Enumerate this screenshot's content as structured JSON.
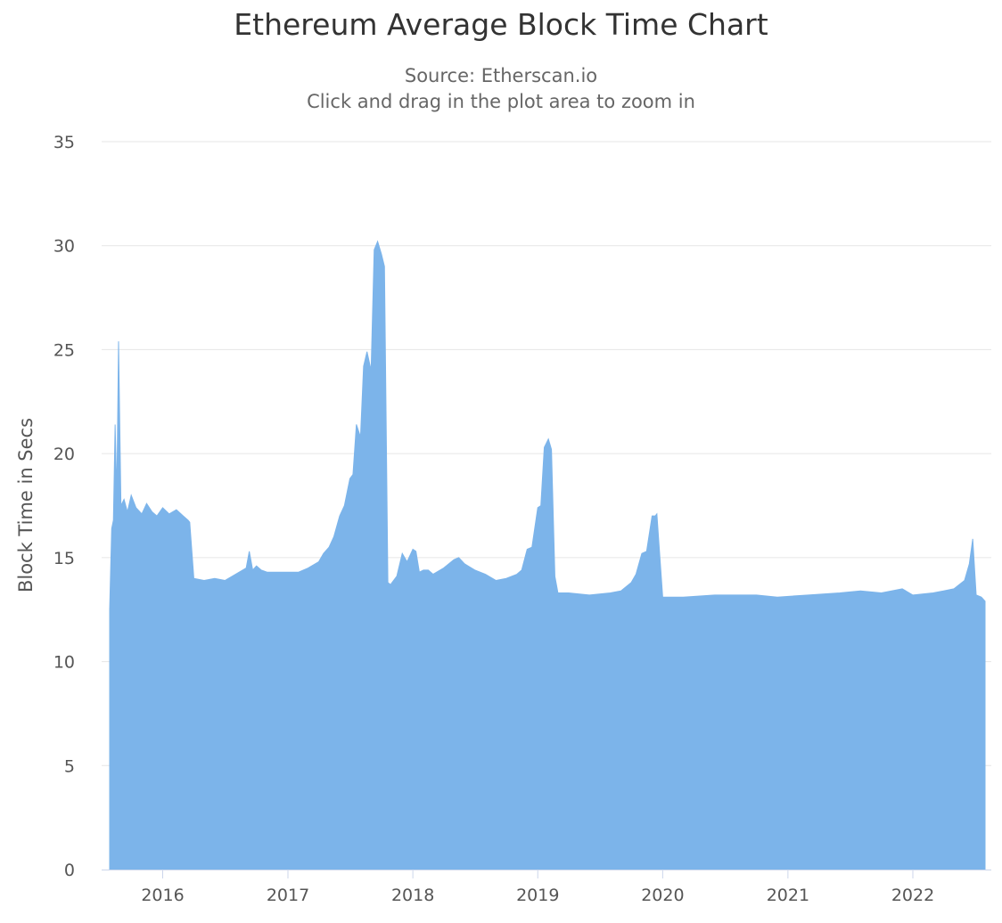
{
  "chart_data": {
    "type": "area",
    "title": "Ethereum Average Block Time Chart",
    "subtitle": [
      "Source: Etherscan.io",
      "Click and drag in the plot area to zoom in"
    ],
    "xlabel": "",
    "ylabel": "Block Time in Secs",
    "ylim": [
      0,
      35
    ],
    "yticks": [
      0,
      5,
      10,
      15,
      20,
      25,
      30,
      35
    ],
    "xlim": [
      "2015-07-30",
      "2022-07-31"
    ],
    "xticks": [
      "2016",
      "2017",
      "2018",
      "2019",
      "2020",
      "2021",
      "2022"
    ],
    "grid": true,
    "legend": "none",
    "colors": {
      "fill": "#7cb4ea",
      "grid": "#e6e6e6",
      "axis": "#ccd6eb"
    },
    "series": [
      {
        "x": [
          "2015-07-30",
          "2015-08-05",
          "2015-08-10",
          "2015-08-15",
          "2015-08-20",
          "2015-08-25",
          "2015-09-01",
          "2015-09-10",
          "2015-09-20",
          "2015-10-01",
          "2015-10-15",
          "2015-11-01",
          "2015-11-15",
          "2015-12-01",
          "2015-12-15",
          "2016-01-01",
          "2016-01-20",
          "2016-02-10",
          "2016-03-01",
          "2016-03-15",
          "2016-03-20",
          "2016-04-01",
          "2016-05-01",
          "2016-06-01",
          "2016-07-01",
          "2016-08-01",
          "2016-09-01",
          "2016-09-10",
          "2016-09-20",
          "2016-10-01",
          "2016-10-15",
          "2016-11-01",
          "2016-12-01",
          "2017-01-01",
          "2017-02-01",
          "2017-03-01",
          "2017-04-01",
          "2017-04-15",
          "2017-05-01",
          "2017-05-15",
          "2017-06-01",
          "2017-06-15",
          "2017-07-01",
          "2017-07-10",
          "2017-07-20",
          "2017-08-01",
          "2017-08-10",
          "2017-08-20",
          "2017-09-01",
          "2017-09-10",
          "2017-09-20",
          "2017-10-01",
          "2017-10-10",
          "2017-10-20",
          "2017-10-28",
          "2017-11-01",
          "2017-11-15",
          "2017-12-01",
          "2017-12-15",
          "2018-01-01",
          "2018-01-10",
          "2018-01-20",
          "2018-02-01",
          "2018-02-15",
          "2018-03-01",
          "2018-04-01",
          "2018-05-01",
          "2018-05-15",
          "2018-06-01",
          "2018-07-01",
          "2018-08-01",
          "2018-09-01",
          "2018-10-01",
          "2018-11-01",
          "2018-11-15",
          "2018-12-01",
          "2018-12-15",
          "2019-01-01",
          "2019-01-10",
          "2019-01-20",
          "2019-02-01",
          "2019-02-10",
          "2019-02-20",
          "2019-03-01",
          "2019-03-10",
          "2019-04-01",
          "2019-06-01",
          "2019-08-01",
          "2019-09-01",
          "2019-10-01",
          "2019-10-15",
          "2019-11-01",
          "2019-11-15",
          "2019-12-01",
          "2019-12-10",
          "2019-12-15",
          "2020-01-01",
          "2020-03-01",
          "2020-06-01",
          "2020-09-01",
          "2020-10-01",
          "2020-12-01",
          "2021-03-01",
          "2021-06-01",
          "2021-08-01",
          "2021-10-01",
          "2021-12-01",
          "2022-01-01",
          "2022-03-01",
          "2022-04-01",
          "2022-05-01",
          "2022-06-01",
          "2022-06-15",
          "2022-06-25",
          "2022-07-05",
          "2022-07-20",
          "2022-07-31"
        ],
        "values": [
          12.5,
          16.4,
          16.8,
          21.4,
          18.0,
          25.4,
          17.5,
          17.8,
          17.2,
          18.0,
          17.4,
          17.1,
          17.6,
          17.2,
          17.0,
          17.4,
          17.1,
          17.3,
          17.0,
          16.8,
          16.7,
          14.0,
          13.9,
          14.0,
          13.9,
          14.2,
          14.5,
          15.3,
          14.4,
          14.6,
          14.4,
          14.3,
          14.3,
          14.3,
          14.3,
          14.5,
          14.8,
          15.2,
          15.5,
          16.0,
          17.0,
          17.5,
          18.8,
          19.0,
          21.4,
          20.8,
          24.2,
          24.9,
          24.0,
          29.8,
          30.2,
          29.6,
          29.0,
          13.8,
          13.7,
          13.8,
          14.1,
          15.2,
          14.8,
          15.4,
          15.3,
          14.3,
          14.4,
          14.4,
          14.2,
          14.5,
          14.9,
          15.0,
          14.7,
          14.4,
          14.2,
          13.9,
          14.0,
          14.2,
          14.4,
          15.4,
          15.5,
          17.4,
          17.5,
          20.3,
          20.7,
          20.2,
          14.1,
          13.3,
          13.3,
          13.3,
          13.2,
          13.3,
          13.4,
          13.8,
          14.2,
          15.2,
          15.3,
          17.0,
          17.0,
          17.1,
          13.1,
          13.1,
          13.2,
          13.2,
          13.2,
          13.1,
          13.2,
          13.3,
          13.4,
          13.3,
          13.5,
          13.2,
          13.3,
          13.4,
          13.5,
          13.9,
          14.7,
          15.9,
          13.2,
          13.1,
          12.9
        ]
      }
    ]
  }
}
